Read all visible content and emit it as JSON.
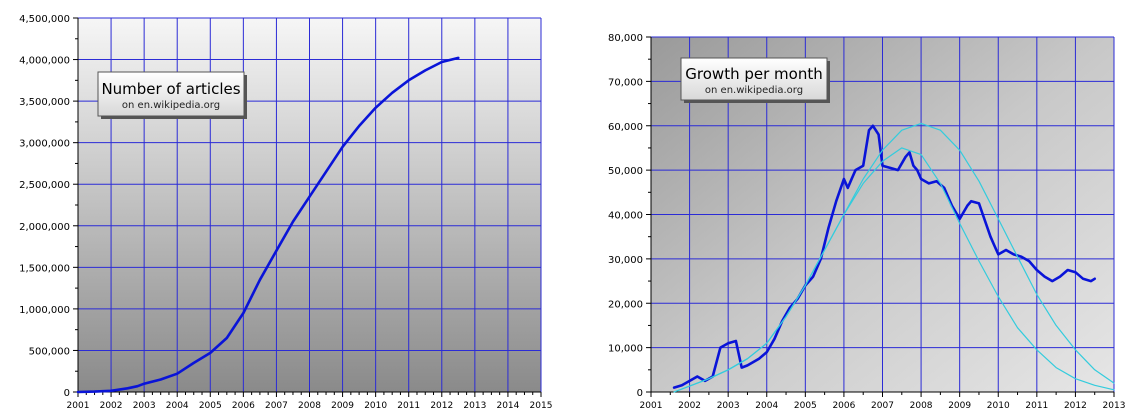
{
  "chart_data": [
    {
      "type": "line",
      "title": "Number of articles",
      "subtitle": "on en.wikipedia.org",
      "xlabel": "",
      "ylabel": "",
      "xlim": [
        2001,
        2015
      ],
      "ylim": [
        0,
        4500000
      ],
      "grid": true,
      "x_ticks": [
        "2001",
        "2002",
        "2003",
        "2004",
        "2005",
        "2006",
        "2007",
        "2008",
        "2009",
        "2010",
        "2011",
        "2012",
        "2013",
        "2014",
        "2015"
      ],
      "y_ticks": [
        "0",
        "500,000",
        "1,000,000",
        "1,500,000",
        "2,000,000",
        "2,500,000",
        "3,000,000",
        "3,500,000",
        "4,000,000",
        "4,500,000"
      ],
      "colors": {
        "series": "#0a14d8",
        "grid": "#2b2bd6"
      },
      "series": [
        {
          "x": [
            2001.0,
            2001.5,
            2002.0,
            2002.5,
            2002.8,
            2003.0,
            2003.5,
            2004.0,
            2004.5,
            2005.0,
            2005.5,
            2006.0,
            2006.5,
            2007.0,
            2007.5,
            2008.0,
            2008.5,
            2009.0,
            2009.5,
            2010.0,
            2010.5,
            2011.0,
            2011.5,
            2012.0,
            2012.5
          ],
          "y": [
            0,
            5000,
            15000,
            45000,
            70000,
            100000,
            150000,
            220000,
            350000,
            470000,
            650000,
            950000,
            1350000,
            1700000,
            2050000,
            2350000,
            2650000,
            2950000,
            3200000,
            3420000,
            3600000,
            3750000,
            3870000,
            3970000,
            4020000
          ]
        }
      ]
    },
    {
      "type": "line",
      "title": "Growth per month",
      "subtitle": "on en.wikipedia.org",
      "xlabel": "",
      "ylabel": "",
      "xlim": [
        2001,
        2013
      ],
      "ylim": [
        0,
        80000
      ],
      "grid": true,
      "x_ticks": [
        "2001",
        "2002",
        "2003",
        "2004",
        "2005",
        "2006",
        "2007",
        "2008",
        "2009",
        "2010",
        "2011",
        "2012",
        "2013"
      ],
      "y_ticks": [
        "0",
        "10,000",
        "20,000",
        "30,000",
        "40,000",
        "50,000",
        "60,000",
        "70,000",
        "80,000"
      ],
      "colors": {
        "series": "#0a14d8",
        "fit": "#33ccdd",
        "grid": "#2b2bd6"
      },
      "series": [
        {
          "role": "actual",
          "x": [
            2001.6,
            2001.8,
            2002.0,
            2002.2,
            2002.4,
            2002.6,
            2002.8,
            2003.0,
            2003.2,
            2003.35,
            2003.5,
            2003.8,
            2004.0,
            2004.2,
            2004.4,
            2004.6,
            2004.8,
            2005.0,
            2005.2,
            2005.4,
            2005.6,
            2005.8,
            2006.0,
            2006.1,
            2006.2,
            2006.3,
            2006.5,
            2006.65,
            2006.75,
            2006.9,
            2007.0,
            2007.2,
            2007.4,
            2007.6,
            2007.7,
            2007.8,
            2007.9,
            2008.0,
            2008.2,
            2008.4,
            2008.6,
            2008.8,
            2009.0,
            2009.2,
            2009.3,
            2009.5,
            2009.6,
            2009.8,
            2009.9,
            2010.0,
            2010.2,
            2010.4,
            2010.6,
            2010.8,
            2011.0,
            2011.2,
            2011.4,
            2011.6,
            2011.8,
            2012.0,
            2012.2,
            2012.4,
            2012.5
          ],
          "y": [
            1000,
            1500,
            2500,
            3500,
            2500,
            3500,
            10000,
            11000,
            11500,
            5500,
            6000,
            7500,
            9000,
            12000,
            16000,
            19000,
            21000,
            24000,
            26000,
            30000,
            37000,
            43000,
            48000,
            46000,
            48000,
            50000,
            51000,
            59000,
            60000,
            58000,
            51000,
            50500,
            50000,
            53000,
            54000,
            51000,
            50000,
            48000,
            47000,
            47500,
            46000,
            42000,
            39000,
            42000,
            43000,
            42500,
            40000,
            35000,
            33000,
            31000,
            32000,
            31000,
            30500,
            29500,
            27500,
            26000,
            25000,
            26000,
            27500,
            27000,
            25500,
            25000,
            25500
          ]
        },
        {
          "role": "fit-1",
          "x": [
            2001.6,
            2002.5,
            2003.0,
            2003.5,
            2004.0,
            2004.5,
            2005.0,
            2005.5,
            2006.0,
            2006.5,
            2007.0,
            2007.5,
            2008.0,
            2008.5,
            2009.0,
            2009.5,
            2010.0,
            2010.5,
            2011.0,
            2011.5,
            2012.0,
            2012.5,
            2013.0
          ],
          "y": [
            0,
            3000,
            5000,
            7500,
            11000,
            17000,
            24000,
            32000,
            40000,
            47000,
            52000,
            55000,
            53500,
            47000,
            38000,
            29500,
            21500,
            14500,
            9500,
            5500,
            3000,
            1500,
            500
          ]
        },
        {
          "role": "fit-2",
          "x": [
            2001.6,
            2002.5,
            2003.0,
            2003.5,
            2004.0,
            2004.5,
            2005.0,
            2005.5,
            2006.0,
            2006.5,
            2007.0,
            2007.5,
            2008.0,
            2008.5,
            2009.0,
            2009.5,
            2010.0,
            2010.5,
            2011.0,
            2011.5,
            2012.0,
            2012.5,
            2013.0
          ],
          "y": [
            0,
            3000,
            5000,
            7500,
            11000,
            17000,
            24000,
            32000,
            40000,
            48000,
            54500,
            59000,
            60500,
            59000,
            54500,
            47500,
            39000,
            30500,
            22000,
            15000,
            9500,
            5000,
            2000
          ]
        }
      ]
    }
  ]
}
